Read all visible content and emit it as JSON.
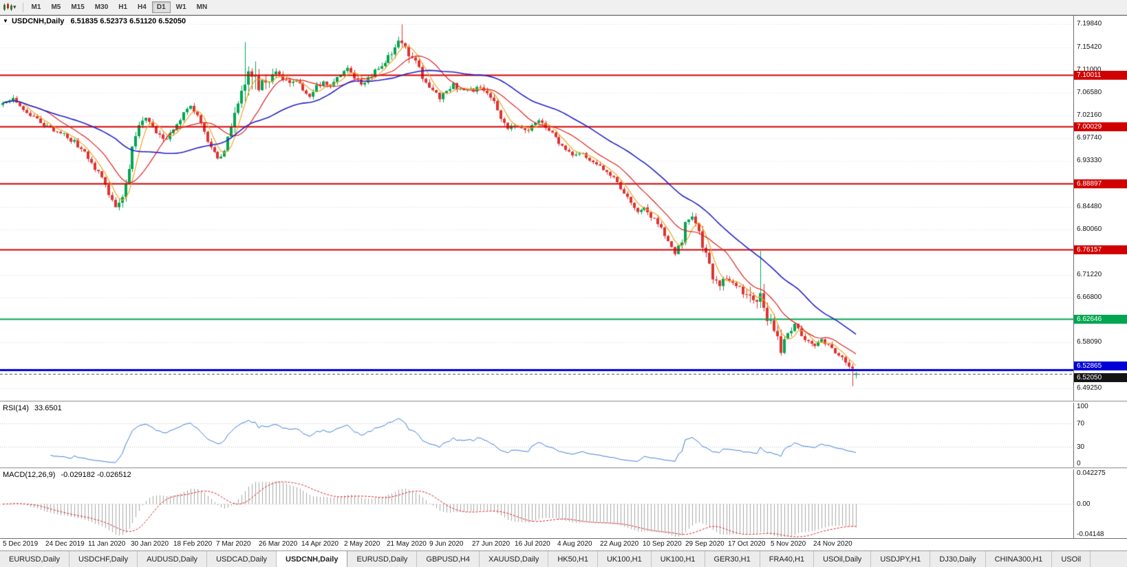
{
  "icons": {
    "symbol_marker": "▼",
    "dropdown_caret": "▾"
  },
  "toolbar": {
    "timeframes": [
      "M1",
      "M5",
      "M15",
      "M30",
      "H1",
      "H4",
      "D1",
      "W1",
      "MN"
    ],
    "active_timeframe": "D1"
  },
  "chart": {
    "title": "USDCNH,Daily",
    "symbol": "USDCNH",
    "period": "Daily",
    "ohlc": {
      "open": "6.51835",
      "high": "6.52373",
      "low": "6.51120",
      "close": "6.52050"
    },
    "price_axis": [
      "7.19840",
      "7.15420",
      "7.11000",
      "7.06580",
      "7.02160",
      "6.97740",
      "6.93330",
      "6.84480",
      "6.80060",
      "6.71220",
      "6.66800",
      "6.58090",
      "6.49250"
    ],
    "levels": [
      {
        "label": "7.10011",
        "value": 7.10011,
        "color": "#d10000",
        "width": 2,
        "dy": -6
      },
      {
        "label": "7.00029",
        "value": 7.00029,
        "color": "#d10000",
        "width": 2,
        "dy": -6
      },
      {
        "label": "6.88897",
        "value": 6.88897,
        "color": "#d10000",
        "width": 2,
        "dy": -6
      },
      {
        "label": "6.76157",
        "value": 6.76157,
        "color": "#d10000",
        "width": 2,
        "dy": -6
      },
      {
        "label": "6.62646",
        "value": 6.62646,
        "color": "#00a651",
        "width": 2,
        "dy": -6
      },
      {
        "label": "6.52865",
        "value": 6.52865,
        "color": "#0000d8",
        "width": 3,
        "dy": -12
      }
    ],
    "current_price": {
      "label": "6.52050",
      "value": 6.5205,
      "bg": "#141414"
    },
    "date_axis": [
      "5 Dec 2019",
      "24 Dec 2019",
      "11 Jan 2020",
      "30 Jan 2020",
      "18 Feb 2020",
      "7 Mar 2020",
      "26 Mar 2020",
      "14 Apr 2020",
      "2 May 2020",
      "21 May 2020",
      "9 Jun 2020",
      "27 Jun 2020",
      "16 Jul 2020",
      "4 Aug 2020",
      "22 Aug 2020",
      "10 Sep 2020",
      "29 Sep 2020",
      "17 Oct 2020",
      "5 Nov 2020",
      "24 Nov 2020"
    ]
  },
  "indicators": {
    "rsi": {
      "label": "RSI(14)",
      "value": "33.6501",
      "period": 14,
      "axis": [
        {
          "label": "100",
          "value": 100
        },
        {
          "label": "70",
          "value": 70
        },
        {
          "label": "30",
          "value": 30
        },
        {
          "label": "0",
          "value": 0
        }
      ],
      "guides": [
        70,
        30
      ]
    },
    "macd": {
      "label": "MACD(12,26,9)",
      "value_main": "-0.029182",
      "value_signal": "-0.026512",
      "fast": 12,
      "slow": 26,
      "signal": 9,
      "ylim": [
        -0.04148,
        0.042275
      ],
      "axis": [
        {
          "label": "0.042275",
          "value": 0.042275
        },
        {
          "label": "0.00",
          "value": 0
        },
        {
          "label": "-0.04148",
          "value": -0.04148
        }
      ]
    }
  },
  "tabs": {
    "active_index": 4,
    "items": [
      "EURUSD,Daily",
      "USDCHF,Daily",
      "AUDUSD,Daily",
      "USDCAD,Daily",
      "USDCNH,Daily",
      "EURUSD,Daily",
      "GBPUSD,H4",
      "XAUUSD,Daily",
      "HK50,H1",
      "UK100,H1",
      "UK100,H1",
      "GER30,H1",
      "FRA40,H1",
      "USOil,Daily",
      "USDJPY,H1",
      "DJ30,Daily",
      "CHINA300,H1",
      "USOil"
    ]
  },
  "chart_data": {
    "type": "candlestick",
    "symbol": "USDCNH",
    "timeframe": "Daily",
    "count": 251,
    "ylim": [
      6.468,
      7.215
    ],
    "close_anchors": [
      [
        0,
        7.042
      ],
      [
        3,
        7.055
      ],
      [
        7,
        7.03
      ],
      [
        10,
        7.012
      ],
      [
        13,
        7.0
      ],
      [
        17,
        6.988
      ],
      [
        21,
        6.97
      ],
      [
        24,
        6.95
      ],
      [
        26,
        6.928
      ],
      [
        29,
        6.9
      ],
      [
        31,
        6.872
      ],
      [
        33,
        6.848
      ],
      [
        35,
        6.862
      ],
      [
        37,
        6.92
      ],
      [
        38,
        6.962
      ],
      [
        40,
        6.998
      ],
      [
        42,
        7.015
      ],
      [
        45,
        6.99
      ],
      [
        48,
        6.976
      ],
      [
        51,
        7.0
      ],
      [
        53,
        7.024
      ],
      [
        55,
        7.04
      ],
      [
        57,
        7.02
      ],
      [
        59,
        6.986
      ],
      [
        61,
        6.956
      ],
      [
        63,
        6.936
      ],
      [
        65,
        6.958
      ],
      [
        67,
        6.998
      ],
      [
        69,
        7.038
      ],
      [
        71,
        7.088
      ],
      [
        72,
        7.128
      ],
      [
        73,
        7.082
      ],
      [
        74,
        7.112
      ],
      [
        75,
        7.058
      ],
      [
        76,
        7.084
      ],
      [
        78,
        7.094
      ],
      [
        80,
        7.104
      ],
      [
        82,
        7.094
      ],
      [
        84,
        7.086
      ],
      [
        86,
        7.094
      ],
      [
        88,
        7.072
      ],
      [
        90,
        7.062
      ],
      [
        92,
        7.078
      ],
      [
        94,
        7.088
      ],
      [
        96,
        7.08
      ],
      [
        98,
        7.094
      ],
      [
        101,
        7.114
      ],
      [
        103,
        7.098
      ],
      [
        105,
        7.082
      ],
      [
        107,
        7.094
      ],
      [
        109,
        7.106
      ],
      [
        111,
        7.116
      ],
      [
        113,
        7.134
      ],
      [
        115,
        7.15
      ],
      [
        117,
        7.17
      ],
      [
        118,
        7.16
      ],
      [
        119,
        7.146
      ],
      [
        121,
        7.126
      ],
      [
        123,
        7.096
      ],
      [
        125,
        7.076
      ],
      [
        126,
        7.066
      ],
      [
        128,
        7.056
      ],
      [
        130,
        7.07
      ],
      [
        132,
        7.08
      ],
      [
        134,
        7.07
      ],
      [
        136,
        7.076
      ],
      [
        138,
        7.07
      ],
      [
        140,
        7.076
      ],
      [
        142,
        7.066
      ],
      [
        144,
        7.05
      ],
      [
        146,
        7.02
      ],
      [
        148,
        6.996
      ],
      [
        150,
        7.006
      ],
      [
        151,
        7.0
      ],
      [
        153,
        6.99
      ],
      [
        155,
        7.0
      ],
      [
        157,
        7.01
      ],
      [
        159,
        7.0
      ],
      [
        161,
        6.986
      ],
      [
        163,
        6.97
      ],
      [
        165,
        6.956
      ],
      [
        167,
        6.946
      ],
      [
        169,
        6.95
      ],
      [
        171,
        6.94
      ],
      [
        173,
        6.93
      ],
      [
        176,
        6.916
      ],
      [
        178,
        6.906
      ],
      [
        180,
        6.89
      ],
      [
        182,
        6.87
      ],
      [
        184,
        6.85
      ],
      [
        186,
        6.836
      ],
      [
        188,
        6.84
      ],
      [
        190,
        6.826
      ],
      [
        192,
        6.81
      ],
      [
        194,
        6.79
      ],
      [
        196,
        6.77
      ],
      [
        197,
        6.756
      ],
      [
        199,
        6.78
      ],
      [
        200,
        6.81
      ],
      [
        202,
        6.824
      ],
      [
        204,
        6.79
      ],
      [
        206,
        6.75
      ],
      [
        208,
        6.71
      ],
      [
        210,
        6.69
      ],
      [
        212,
        6.71
      ],
      [
        213,
        6.7
      ],
      [
        215,
        6.69
      ],
      [
        217,
        6.68
      ],
      [
        219,
        6.668
      ],
      [
        220,
        6.65
      ],
      [
        222,
        6.69
      ],
      [
        223,
        6.66
      ],
      [
        224,
        6.634
      ],
      [
        225,
        6.616
      ],
      [
        227,
        6.586
      ],
      [
        228,
        6.57
      ],
      [
        230,
        6.602
      ],
      [
        232,
        6.614
      ],
      [
        234,
        6.596
      ],
      [
        236,
        6.584
      ],
      [
        238,
        6.576
      ],
      [
        240,
        6.586
      ],
      [
        242,
        6.576
      ],
      [
        244,
        6.564
      ],
      [
        246,
        6.55
      ],
      [
        248,
        6.534
      ],
      [
        250,
        6.5205
      ]
    ],
    "range_anchors": [
      [
        0,
        0.02
      ],
      [
        13,
        0.016
      ],
      [
        26,
        0.02
      ],
      [
        33,
        0.026
      ],
      [
        38,
        0.034
      ],
      [
        45,
        0.022
      ],
      [
        55,
        0.018
      ],
      [
        63,
        0.022
      ],
      [
        69,
        0.045
      ],
      [
        71,
        0.095
      ],
      [
        72,
        0.12
      ],
      [
        74,
        0.09
      ],
      [
        76,
        0.05
      ],
      [
        80,
        0.03
      ],
      [
        88,
        0.022
      ],
      [
        100,
        0.022
      ],
      [
        110,
        0.024
      ],
      [
        113,
        0.03
      ],
      [
        117,
        0.052
      ],
      [
        121,
        0.034
      ],
      [
        126,
        0.024
      ],
      [
        138,
        0.016
      ],
      [
        144,
        0.026
      ],
      [
        148,
        0.028
      ],
      [
        155,
        0.016
      ],
      [
        165,
        0.016
      ],
      [
        176,
        0.018
      ],
      [
        186,
        0.02
      ],
      [
        196,
        0.026
      ],
      [
        200,
        0.024
      ],
      [
        206,
        0.036
      ],
      [
        210,
        0.03
      ],
      [
        215,
        0.02
      ],
      [
        222,
        0.075
      ],
      [
        225,
        0.04
      ],
      [
        228,
        0.042
      ],
      [
        232,
        0.022
      ],
      [
        238,
        0.016
      ],
      [
        244,
        0.018
      ],
      [
        248,
        0.022
      ],
      [
        250,
        0.013
      ]
    ],
    "overrides": {
      "33": {
        "l": 6.8452
      },
      "71": {
        "h": 7.164
      },
      "117": {
        "h": 7.1984
      },
      "222": {
        "h": 6.7584
      },
      "228": {
        "l": 6.5556
      },
      "249": {
        "l": 6.496
      },
      "250": {
        "o": 6.51835,
        "h": 6.52373,
        "l": 6.5112,
        "c": 6.5205
      }
    },
    "ma_periods": {
      "fast": 5,
      "mid": 13,
      "slow": 34
    },
    "colors": {
      "up": "#00a651",
      "down": "#e03232",
      "ma_fast": "#f0a420",
      "ma_mid": "#e02020",
      "ma_slow": "#2020cc",
      "rsi": "#3d7edb",
      "macd_hist": "#a6a6a6",
      "macd_signal": "#e02020",
      "grid": "#dcdcdc",
      "current_line": "#4a4a4a"
    }
  }
}
